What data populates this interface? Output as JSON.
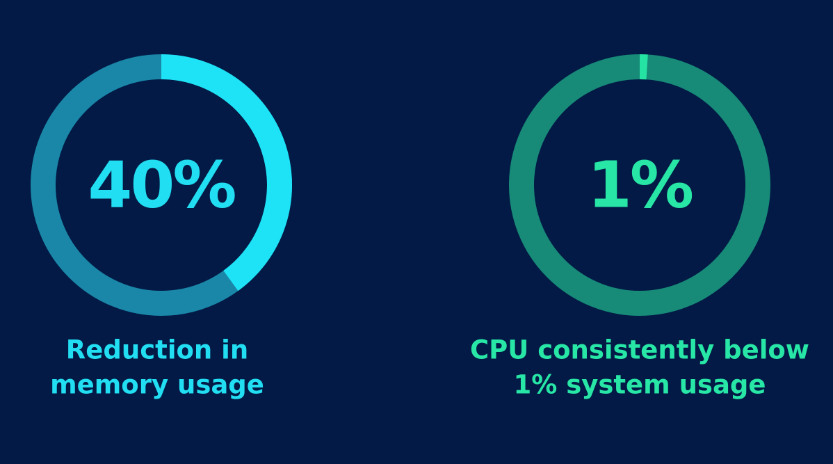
{
  "chart_data": [
    {
      "type": "donut",
      "values": [
        40
      ],
      "value_labels": [
        "40%"
      ],
      "max": 100,
      "caption": [
        "Reduction in",
        "memory usage"
      ],
      "color": "#1ee3f7",
      "track_color": "#1a87a8",
      "text_color": "#22def2"
    },
    {
      "type": "donut",
      "values": [
        1
      ],
      "value_labels": [
        "1%"
      ],
      "max": 100,
      "caption": [
        "CPU consistently below",
        "1% system usage"
      ],
      "color": "#25e3a2",
      "track_color": "#178a78",
      "text_color": "#27e6a6"
    }
  ]
}
